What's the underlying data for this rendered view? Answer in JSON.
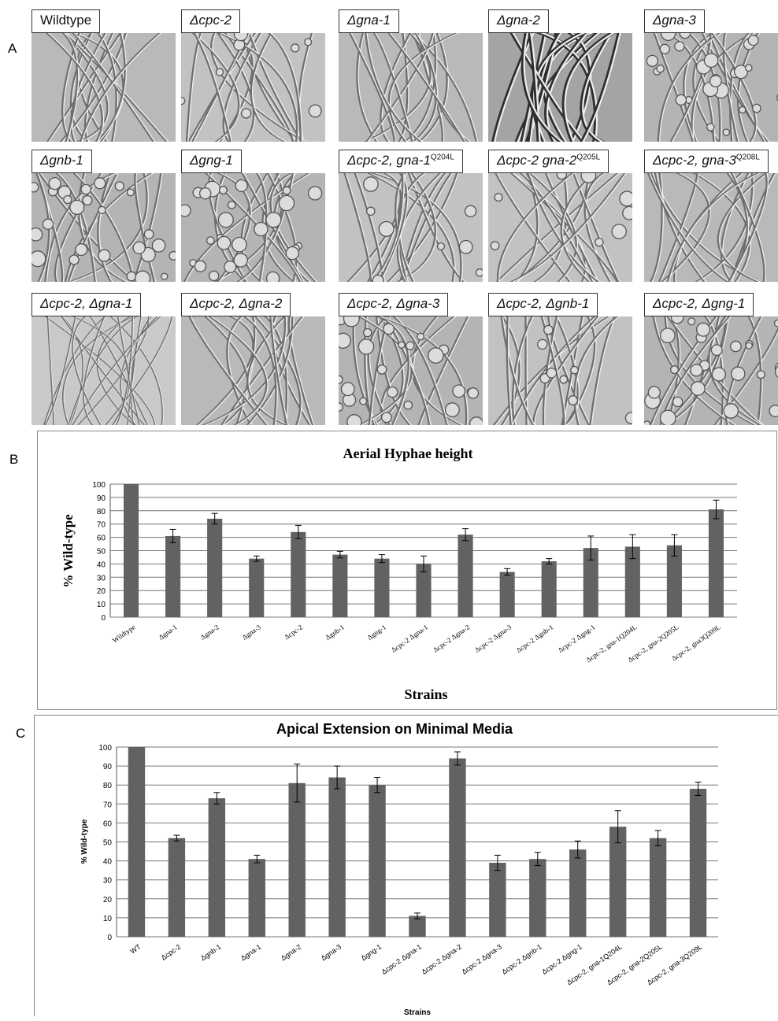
{
  "panel_a": {
    "letter": "A",
    "tiles": [
      {
        "label": "Wildtype",
        "italic": false,
        "texture": "long"
      },
      {
        "label": "Δcpc-2",
        "italic": true,
        "texture": "branchy"
      },
      {
        "label": "Δgna-1",
        "italic": true,
        "texture": "long"
      },
      {
        "label": "Δgna-2",
        "italic": true,
        "texture": "dark"
      },
      {
        "label": "Δgna-3",
        "italic": true,
        "texture": "bubbly"
      },
      {
        "label": "Δgnb-1",
        "italic": true,
        "texture": "bubbly"
      },
      {
        "label": "Δgng-1",
        "italic": true,
        "texture": "bubbly"
      },
      {
        "label": "Δcpc-2, gna-1",
        "sup": "Q204L",
        "italic": true,
        "texture": "branchy"
      },
      {
        "label": "Δcpc-2 gna-2",
        "sup": "Q205L",
        "italic": true,
        "texture": "branchy"
      },
      {
        "label": "Δcpc-2, gna-3",
        "sup": "Q208L",
        "italic": true,
        "texture": "long"
      },
      {
        "label": "Δcpc-2, Δgna-1",
        "italic": true,
        "texture": "fine"
      },
      {
        "label": "Δcpc-2, Δgna-2",
        "italic": true,
        "texture": "long"
      },
      {
        "label": "Δcpc-2, Δgna-3",
        "italic": true,
        "texture": "bubbly"
      },
      {
        "label": "Δcpc-2, Δgnb-1",
        "italic": true,
        "texture": "branchy"
      },
      {
        "label": "Δcpc-2, Δgng-1",
        "italic": true,
        "texture": "bubbly"
      }
    ]
  },
  "panel_b": {
    "letter": "B"
  },
  "panel_c": {
    "letter": "C"
  },
  "chart_data": [
    {
      "type": "bar",
      "title": "Aerial Hyphae height",
      "xlabel": "Strains",
      "ylabel": "% Wild-type",
      "ylim": [
        0,
        100
      ],
      "yticks": [
        0,
        10,
        20,
        30,
        40,
        50,
        60,
        70,
        80,
        90,
        100
      ],
      "grid": true,
      "categories": [
        "Wildtype",
        "Δgna-1",
        "Δgna-2",
        "Δgna-3",
        "Δcpc-2",
        "Δgnb-1",
        "Δgng-1",
        "Δcpc-2 Δgna-1",
        "Δcpc-2 Δgna-2",
        "Δcpc-2 Δgna-3",
        "Δcpc-2 Δgnb-1",
        "Δcpc-2 Δgng-1",
        "Δcpc-2, gna-1Q204L",
        "Δcpc-2, gna-2Q205L",
        "Δcpc-2, gna3Q209L"
      ],
      "values": [
        100,
        61,
        74,
        44,
        64,
        47,
        44,
        40,
        62,
        34,
        42,
        52,
        53,
        54,
        81
      ],
      "errors": [
        0,
        5,
        4,
        2,
        5,
        2.5,
        3,
        6,
        4.5,
        2.5,
        2,
        9,
        9,
        8,
        7
      ],
      "bar_color": "#626262"
    },
    {
      "type": "bar",
      "title": "Apical Extension on Minimal Media",
      "xlabel": "Strains",
      "ylabel": "% Wild-type",
      "ylim": [
        0,
        100
      ],
      "yticks": [
        0,
        10,
        20,
        30,
        40,
        50,
        60,
        70,
        80,
        90,
        100
      ],
      "grid": true,
      "categories": [
        "WT",
        "Δcpc-2",
        "Δgnb-1",
        "Δgna-1",
        "Δgna-2",
        "Δgna-3",
        "Δgng-1",
        "Δcpc-2 Δgna-1",
        "Δcpc-2 Δgna-2",
        "Δcpc-2 Δgna-3",
        "Δcpc-2 Δgnb-1",
        "Δcpc-2 Δgng-1",
        "Δcpc-2, gna-1Q204L",
        "Δcpc-2, gna-2Q205L",
        "Δcpc-2, gna-3Q209L"
      ],
      "values": [
        100,
        52,
        73,
        41,
        81,
        84,
        80,
        11,
        94,
        39,
        41,
        46,
        58,
        52,
        78
      ],
      "errors": [
        0,
        1.5,
        3,
        2,
        10,
        6,
        4,
        1.5,
        3.5,
        4,
        3.5,
        4.5,
        8.5,
        4,
        3.5
      ],
      "bar_color": "#626262"
    }
  ]
}
